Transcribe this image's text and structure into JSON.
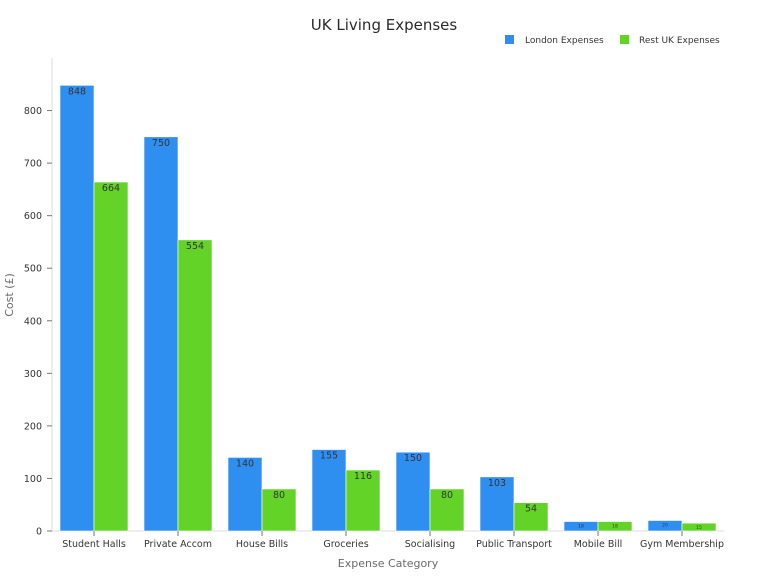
{
  "chart_data": {
    "type": "bar",
    "title": "UK Living Expenses",
    "xlabel": "Expense Category",
    "ylabel": "Cost (£)",
    "ylim": [
      0,
      900
    ],
    "yticks": [
      0,
      100,
      200,
      300,
      400,
      500,
      600,
      700,
      800
    ],
    "grid": false,
    "legend": "top-right",
    "categories": [
      "Student Halls",
      "Private Accom",
      "House Bills",
      "Groceries",
      "Socialising",
      "Public Transport",
      "Mobile Bill",
      "Gym Membership"
    ],
    "series": [
      {
        "name": "London Expenses",
        "color": "#2f8ff0",
        "values": [
          848,
          750,
          140,
          155,
          150,
          103,
          18,
          20
        ]
      },
      {
        "name": "Rest UK Expenses",
        "color": "#63d427",
        "values": [
          664,
          554,
          80,
          116,
          80,
          54,
          18,
          15
        ]
      }
    ]
  }
}
